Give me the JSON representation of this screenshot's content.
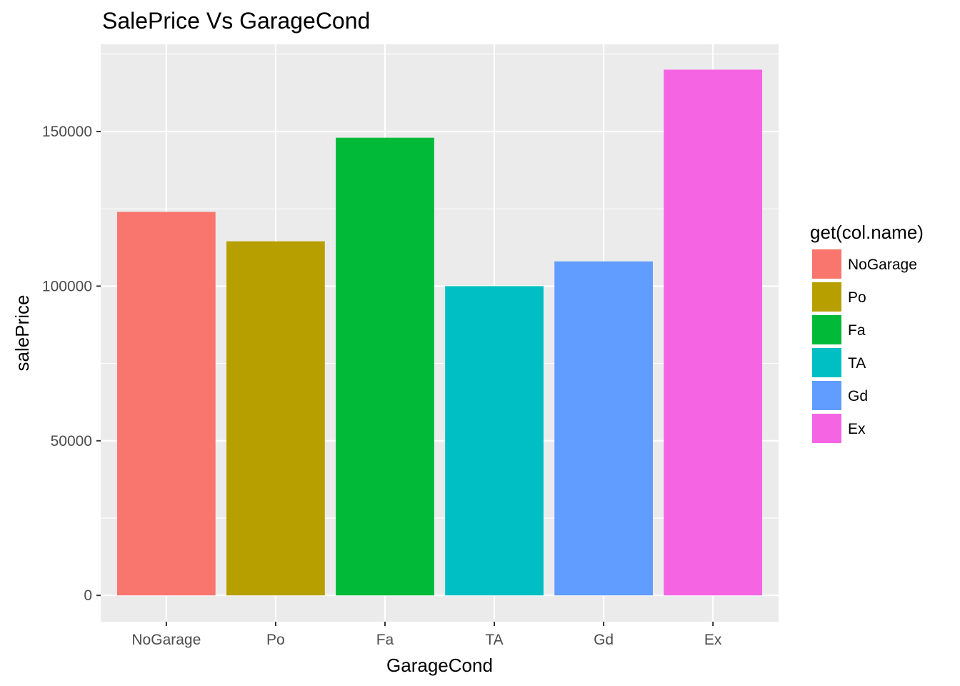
{
  "chart_data": {
    "type": "bar",
    "title": "SalePrice Vs GarageCond",
    "xlabel": "GarageCond",
    "ylabel": "salePrice",
    "categories": [
      "NoGarage",
      "Po",
      "Fa",
      "TA",
      "Gd",
      "Ex"
    ],
    "values": [
      124000,
      114500,
      148000,
      100000,
      108000,
      170000
    ],
    "colors": [
      "#F8766D",
      "#B79F00",
      "#00BA38",
      "#00BFC4",
      "#619CFF",
      "#F564E3"
    ],
    "ylim": [
      -8500,
      178200
    ],
    "yticks": [
      0,
      50000,
      100000,
      150000
    ],
    "ytick_labels": [
      "0",
      "50000",
      "100000",
      "150000"
    ],
    "grid": true,
    "legend": {
      "title": "get(col.name)",
      "placement": "right",
      "entries": [
        "NoGarage",
        "Po",
        "Fa",
        "TA",
        "Gd",
        "Ex"
      ]
    },
    "panel_background": "#EBEBEB",
    "grid_color": "#FFFFFF"
  }
}
